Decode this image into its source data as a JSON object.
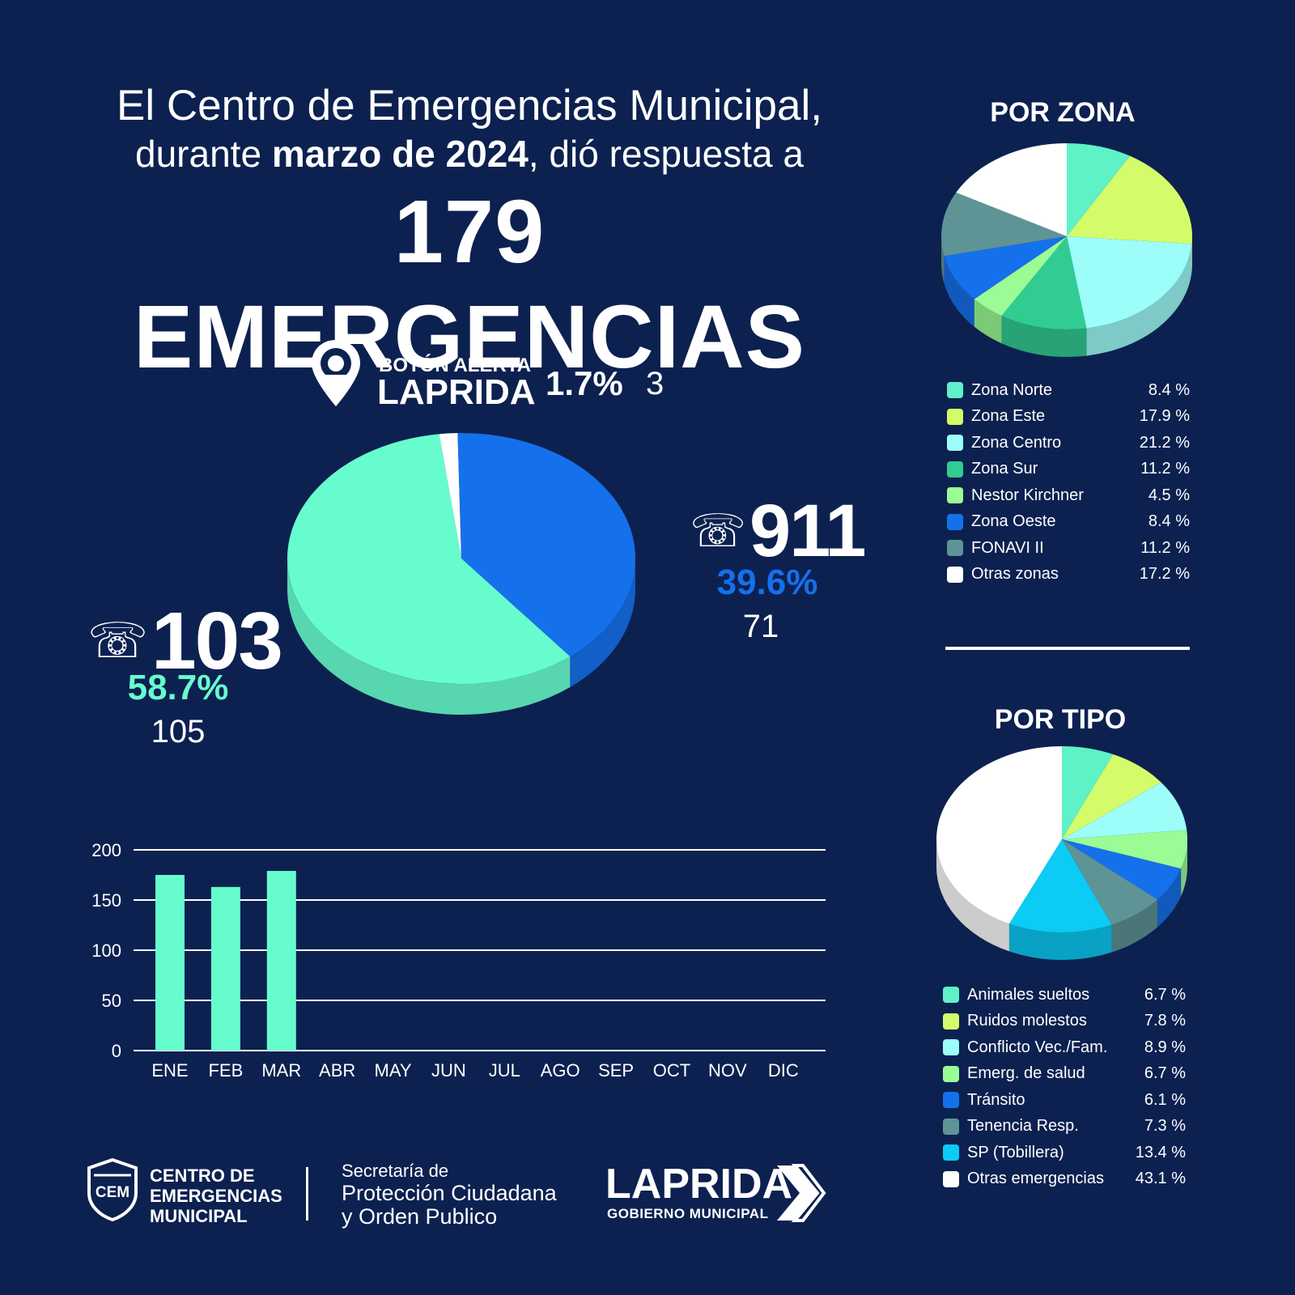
{
  "headline": {
    "line1": "El Centro de Emergencias Municipal,",
    "line2_prefix": "durante ",
    "line2_bold": "marzo de 2024",
    "line2_suffix": ", dió respuesta a",
    "big": "179 EMERGENCIAS"
  },
  "colors": {
    "background": "#0c2150",
    "mint": "#67fcce",
    "blue": "#1570eb",
    "white": "#ffffff"
  },
  "channels": {
    "c103": {
      "label": "103",
      "percent": "58.7%",
      "count": "105"
    },
    "c911": {
      "label": "911",
      "percent": "39.6%",
      "count": "71"
    },
    "boton": {
      "line1": "BOTÓN ALERTA",
      "line2": "LAPRIDA",
      "percent": "1.7%",
      "count": "3"
    }
  },
  "por_zona": {
    "title": "POR ZONA",
    "items": [
      {
        "label": "Zona Norte",
        "value": "8.4 %",
        "color": "#5ef2c6"
      },
      {
        "label": "Zona Este",
        "value": "17.9 %",
        "color": "#d4fc6a"
      },
      {
        "label": "Zona Centro",
        "value": "21.2 %",
        "color": "#9cfdf9"
      },
      {
        "label": "Zona Sur",
        "value": "11.2 %",
        "color": "#31cc92"
      },
      {
        "label": "Nestor Kirchner",
        "value": "4.5 %",
        "color": "#9bfb95"
      },
      {
        "label": "Zona Oeste",
        "value": "8.4 %",
        "color": "#1570eb"
      },
      {
        "label": "FONAVI II",
        "value": "11.2 %",
        "color": "#5e9496"
      },
      {
        "label": "Otras zonas",
        "value": "17.2 %",
        "color": "#ffffff"
      }
    ]
  },
  "por_tipo": {
    "title": "POR TIPO",
    "items": [
      {
        "label": "Animales sueltos",
        "value": "6.7 %",
        "color": "#5ef2c6"
      },
      {
        "label": "Ruidos molestos",
        "value": "7.8 %",
        "color": "#d4fc6a"
      },
      {
        "label": "Conflicto Vec./Fam.",
        "value": "8.9 %",
        "color": "#9cfdf9"
      },
      {
        "label": "Emerg. de salud",
        "value": "6.7 %",
        "color": "#9bfb95"
      },
      {
        "label": "Tránsito",
        "value": "6.1 %",
        "color": "#1570eb"
      },
      {
        "label": "Tenencia Resp.",
        "value": "7.3 %",
        "color": "#5e9496"
      },
      {
        "label": "SP (Tobillera)",
        "value": "13.4 %",
        "color": "#0ccbf5"
      },
      {
        "label": "Otras emergencias",
        "value": "43.1 %",
        "color": "#ffffff"
      }
    ]
  },
  "chart_data": [
    {
      "type": "pie",
      "slices": [
        {
          "name": "103",
          "value": 58.7,
          "count": 105,
          "color": "#67fcce"
        },
        {
          "name": "911",
          "value": 39.6,
          "count": 71,
          "color": "#1570eb"
        },
        {
          "name": "BOTÓN ALERTA LAPRIDA",
          "value": 1.7,
          "count": 3,
          "color": "#ffffff"
        }
      ]
    },
    {
      "type": "pie",
      "title": "POR ZONA",
      "slices": [
        {
          "name": "Zona Norte",
          "value": 8.4
        },
        {
          "name": "Zona Este",
          "value": 17.9
        },
        {
          "name": "Zona Centro",
          "value": 21.2
        },
        {
          "name": "Zona Sur",
          "value": 11.2
        },
        {
          "name": "Nestor Kirchner",
          "value": 4.5
        },
        {
          "name": "Zona Oeste",
          "value": 8.4
        },
        {
          "name": "FONAVI II",
          "value": 11.2
        },
        {
          "name": "Otras zonas",
          "value": 17.2
        }
      ]
    },
    {
      "type": "pie",
      "title": "POR TIPO",
      "slices": [
        {
          "name": "Animales sueltos",
          "value": 6.7
        },
        {
          "name": "Ruidos molestos",
          "value": 7.8
        },
        {
          "name": "Conflicto Vec./Fam.",
          "value": 8.9
        },
        {
          "name": "Emerg. de salud",
          "value": 6.7
        },
        {
          "name": "Tránsito",
          "value": 6.1
        },
        {
          "name": "Tenencia Resp.",
          "value": 7.3
        },
        {
          "name": "SP (Tobillera)",
          "value": 13.4
        },
        {
          "name": "Otras emergencias",
          "value": 43.1
        }
      ]
    },
    {
      "type": "bar",
      "categories": [
        "ENE",
        "FEB",
        "MAR",
        "ABR",
        "MAY",
        "JUN",
        "JUL",
        "AGO",
        "SEP",
        "OCT",
        "NOV",
        "DIC"
      ],
      "values": [
        175,
        163,
        179,
        null,
        null,
        null,
        null,
        null,
        null,
        null,
        null,
        null
      ],
      "ylim": [
        0,
        200
      ],
      "yticks": [
        0,
        50,
        100,
        150,
        200
      ],
      "grid": true,
      "color": "#67fcce"
    }
  ],
  "footer": {
    "cem_badge": "CEM",
    "cem_line1": "CENTRO DE",
    "cem_line2": "EMERGENCIAS",
    "cem_line3": "MUNICIPAL",
    "sec_line1": "Secretaría de",
    "sec_line2": "Protección Ciudadana",
    "sec_line3": "y Orden Publico",
    "laprida": "LAPRIDA",
    "laprida_sub": "GOBIERNO MUNICIPAL"
  }
}
